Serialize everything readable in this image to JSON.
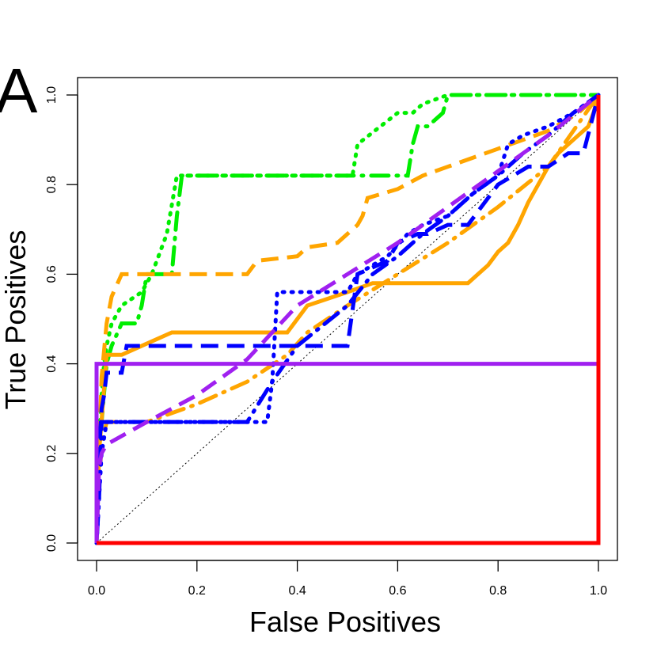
{
  "panel_label": "A",
  "chart_data": {
    "type": "line",
    "title": "",
    "xlabel": "False Positives",
    "ylabel": "True Positives",
    "xlim": [
      0,
      1
    ],
    "ylim": [
      0,
      1
    ],
    "x_ticks": [
      "0.0",
      "0.2",
      "0.4",
      "0.6",
      "0.8",
      "1.0"
    ],
    "y_ticks": [
      "0.0",
      "0.2",
      "0.4",
      "0.6",
      "0.8",
      "1.0"
    ],
    "grid": false,
    "legend": "none",
    "reference_line": {
      "x": [
        0,
        1
      ],
      "y": [
        0,
        1
      ],
      "color": "#000000",
      "style": "dotted"
    },
    "series": [
      {
        "color": "#00ee00",
        "style": "dotted",
        "x": [
          0,
          0.005,
          0.01,
          0.015,
          0.02,
          0.03,
          0.05,
          0.09,
          0.11,
          0.14,
          0.16,
          0.51,
          0.52,
          0.6,
          0.63,
          0.65,
          0.7,
          0.75,
          1.0
        ],
        "y": [
          0,
          0.2,
          0.33,
          0.4,
          0.44,
          0.49,
          0.53,
          0.56,
          0.6,
          0.69,
          0.82,
          0.82,
          0.89,
          0.96,
          0.96,
          0.98,
          1.0,
          1.0,
          1.0
        ]
      },
      {
        "color": "#00ee00",
        "style": "dotdash",
        "x": [
          0,
          0.01,
          0.02,
          0.03,
          0.05,
          0.08,
          0.09,
          0.1,
          0.15,
          0.16,
          0.17,
          0.62,
          0.63,
          0.64,
          0.66,
          0.69,
          0.7,
          0.73,
          0.75,
          1.0
        ],
        "y": [
          0,
          0.27,
          0.4,
          0.44,
          0.49,
          0.49,
          0.53,
          0.6,
          0.6,
          0.73,
          0.82,
          0.82,
          0.89,
          0.93,
          0.93,
          0.96,
          1.0,
          1.0,
          1.0,
          1.0
        ]
      },
      {
        "color": "#ffa500",
        "style": "solid",
        "x": [
          0,
          0.005,
          0.02,
          0.05,
          0.09,
          0.15,
          0.38,
          0.42,
          0.5,
          0.55,
          0.74,
          0.76,
          0.78,
          0.8,
          0.82,
          0.84,
          0.86,
          0.88,
          0.9,
          0.92,
          0.94,
          0.96,
          0.98,
          0.99,
          1.0
        ],
        "y": [
          0,
          0.2,
          0.42,
          0.42,
          0.44,
          0.47,
          0.47,
          0.53,
          0.56,
          0.58,
          0.58,
          0.6,
          0.62,
          0.65,
          0.67,
          0.71,
          0.76,
          0.8,
          0.84,
          0.87,
          0.89,
          0.91,
          0.93,
          0.96,
          1.0
        ]
      },
      {
        "color": "#ffa500",
        "style": "dashed",
        "x": [
          0,
          0.005,
          0.01,
          0.02,
          0.03,
          0.05,
          0.3,
          0.32,
          0.4,
          0.42,
          0.48,
          0.52,
          0.53,
          0.54,
          0.6,
          0.65,
          0.7,
          0.8,
          0.9,
          0.96,
          1.0
        ],
        "y": [
          0,
          0.2,
          0.37,
          0.49,
          0.55,
          0.6,
          0.6,
          0.63,
          0.64,
          0.66,
          0.67,
          0.71,
          0.73,
          0.77,
          0.79,
          0.82,
          0.84,
          0.88,
          0.92,
          0.96,
          1.0
        ]
      },
      {
        "color": "#ffa500",
        "style": "dotdash",
        "x": [
          0,
          0.005,
          0.01,
          0.02,
          0.1,
          0.2,
          0.3,
          0.34,
          0.38,
          0.42,
          0.5,
          0.6,
          0.7,
          0.8,
          0.9,
          1.0
        ],
        "y": [
          0,
          0.13,
          0.22,
          0.27,
          0.27,
          0.31,
          0.36,
          0.39,
          0.42,
          0.47,
          0.53,
          0.6,
          0.67,
          0.75,
          0.84,
          1.0
        ]
      },
      {
        "color": "#0000ff",
        "style": "dashed",
        "x": [
          0,
          0.005,
          0.01,
          0.015,
          0.02,
          0.05,
          0.06,
          0.36,
          0.38,
          0.5,
          0.52,
          0.58,
          0.6,
          0.64,
          0.66,
          0.7,
          0.74,
          0.8,
          0.86,
          0.9,
          0.94,
          0.97,
          1.0
        ],
        "y": [
          0,
          0.2,
          0.3,
          0.33,
          0.38,
          0.38,
          0.44,
          0.44,
          0.44,
          0.44,
          0.6,
          0.63,
          0.67,
          0.69,
          0.69,
          0.71,
          0.71,
          0.8,
          0.84,
          0.84,
          0.87,
          0.87,
          1.0
        ]
      },
      {
        "color": "#0000ff",
        "style": "dotted",
        "x": [
          0,
          0.005,
          0.01,
          0.02,
          0.34,
          0.35,
          0.36,
          0.4,
          0.5,
          0.52,
          0.55,
          0.58,
          0.62,
          0.65,
          0.7,
          0.75,
          0.8,
          0.82,
          0.85,
          0.9,
          0.95,
          1.0
        ],
        "y": [
          0,
          0.1,
          0.2,
          0.27,
          0.27,
          0.36,
          0.56,
          0.56,
          0.56,
          0.6,
          0.62,
          0.64,
          0.69,
          0.71,
          0.73,
          0.78,
          0.82,
          0.89,
          0.91,
          0.93,
          0.96,
          1.0
        ]
      },
      {
        "color": "#0000ff",
        "style": "dotdash",
        "x": [
          0,
          0.005,
          0.01,
          0.04,
          0.1,
          0.2,
          0.3,
          0.35,
          0.4,
          0.5,
          0.55,
          0.6,
          0.65,
          0.7,
          0.75,
          0.8,
          0.85,
          0.9,
          0.95,
          1.0
        ],
        "y": [
          0,
          0.1,
          0.27,
          0.27,
          0.27,
          0.27,
          0.27,
          0.36,
          0.44,
          0.53,
          0.6,
          0.64,
          0.69,
          0.73,
          0.78,
          0.82,
          0.87,
          0.91,
          0.96,
          1.0
        ]
      },
      {
        "color": "#a020f0",
        "style": "solid",
        "x": [
          0,
          0,
          1.0,
          1.0
        ],
        "y": [
          0,
          0.4,
          0.4,
          1.0
        ]
      },
      {
        "color": "#a020f0",
        "style": "dashed",
        "x": [
          0,
          0.005,
          0.01,
          0.02,
          0.1,
          0.2,
          0.3,
          0.4,
          0.5,
          0.6,
          0.7,
          0.8,
          0.9,
          1.0
        ],
        "y": [
          0,
          0.17,
          0.2,
          0.22,
          0.27,
          0.33,
          0.41,
          0.53,
          0.6,
          0.67,
          0.75,
          0.83,
          0.91,
          1.0
        ]
      },
      {
        "color": "#ff0000",
        "style": "solid",
        "x": [
          0,
          1.0,
          1.0
        ],
        "y": [
          0,
          0,
          1.0
        ]
      }
    ]
  }
}
